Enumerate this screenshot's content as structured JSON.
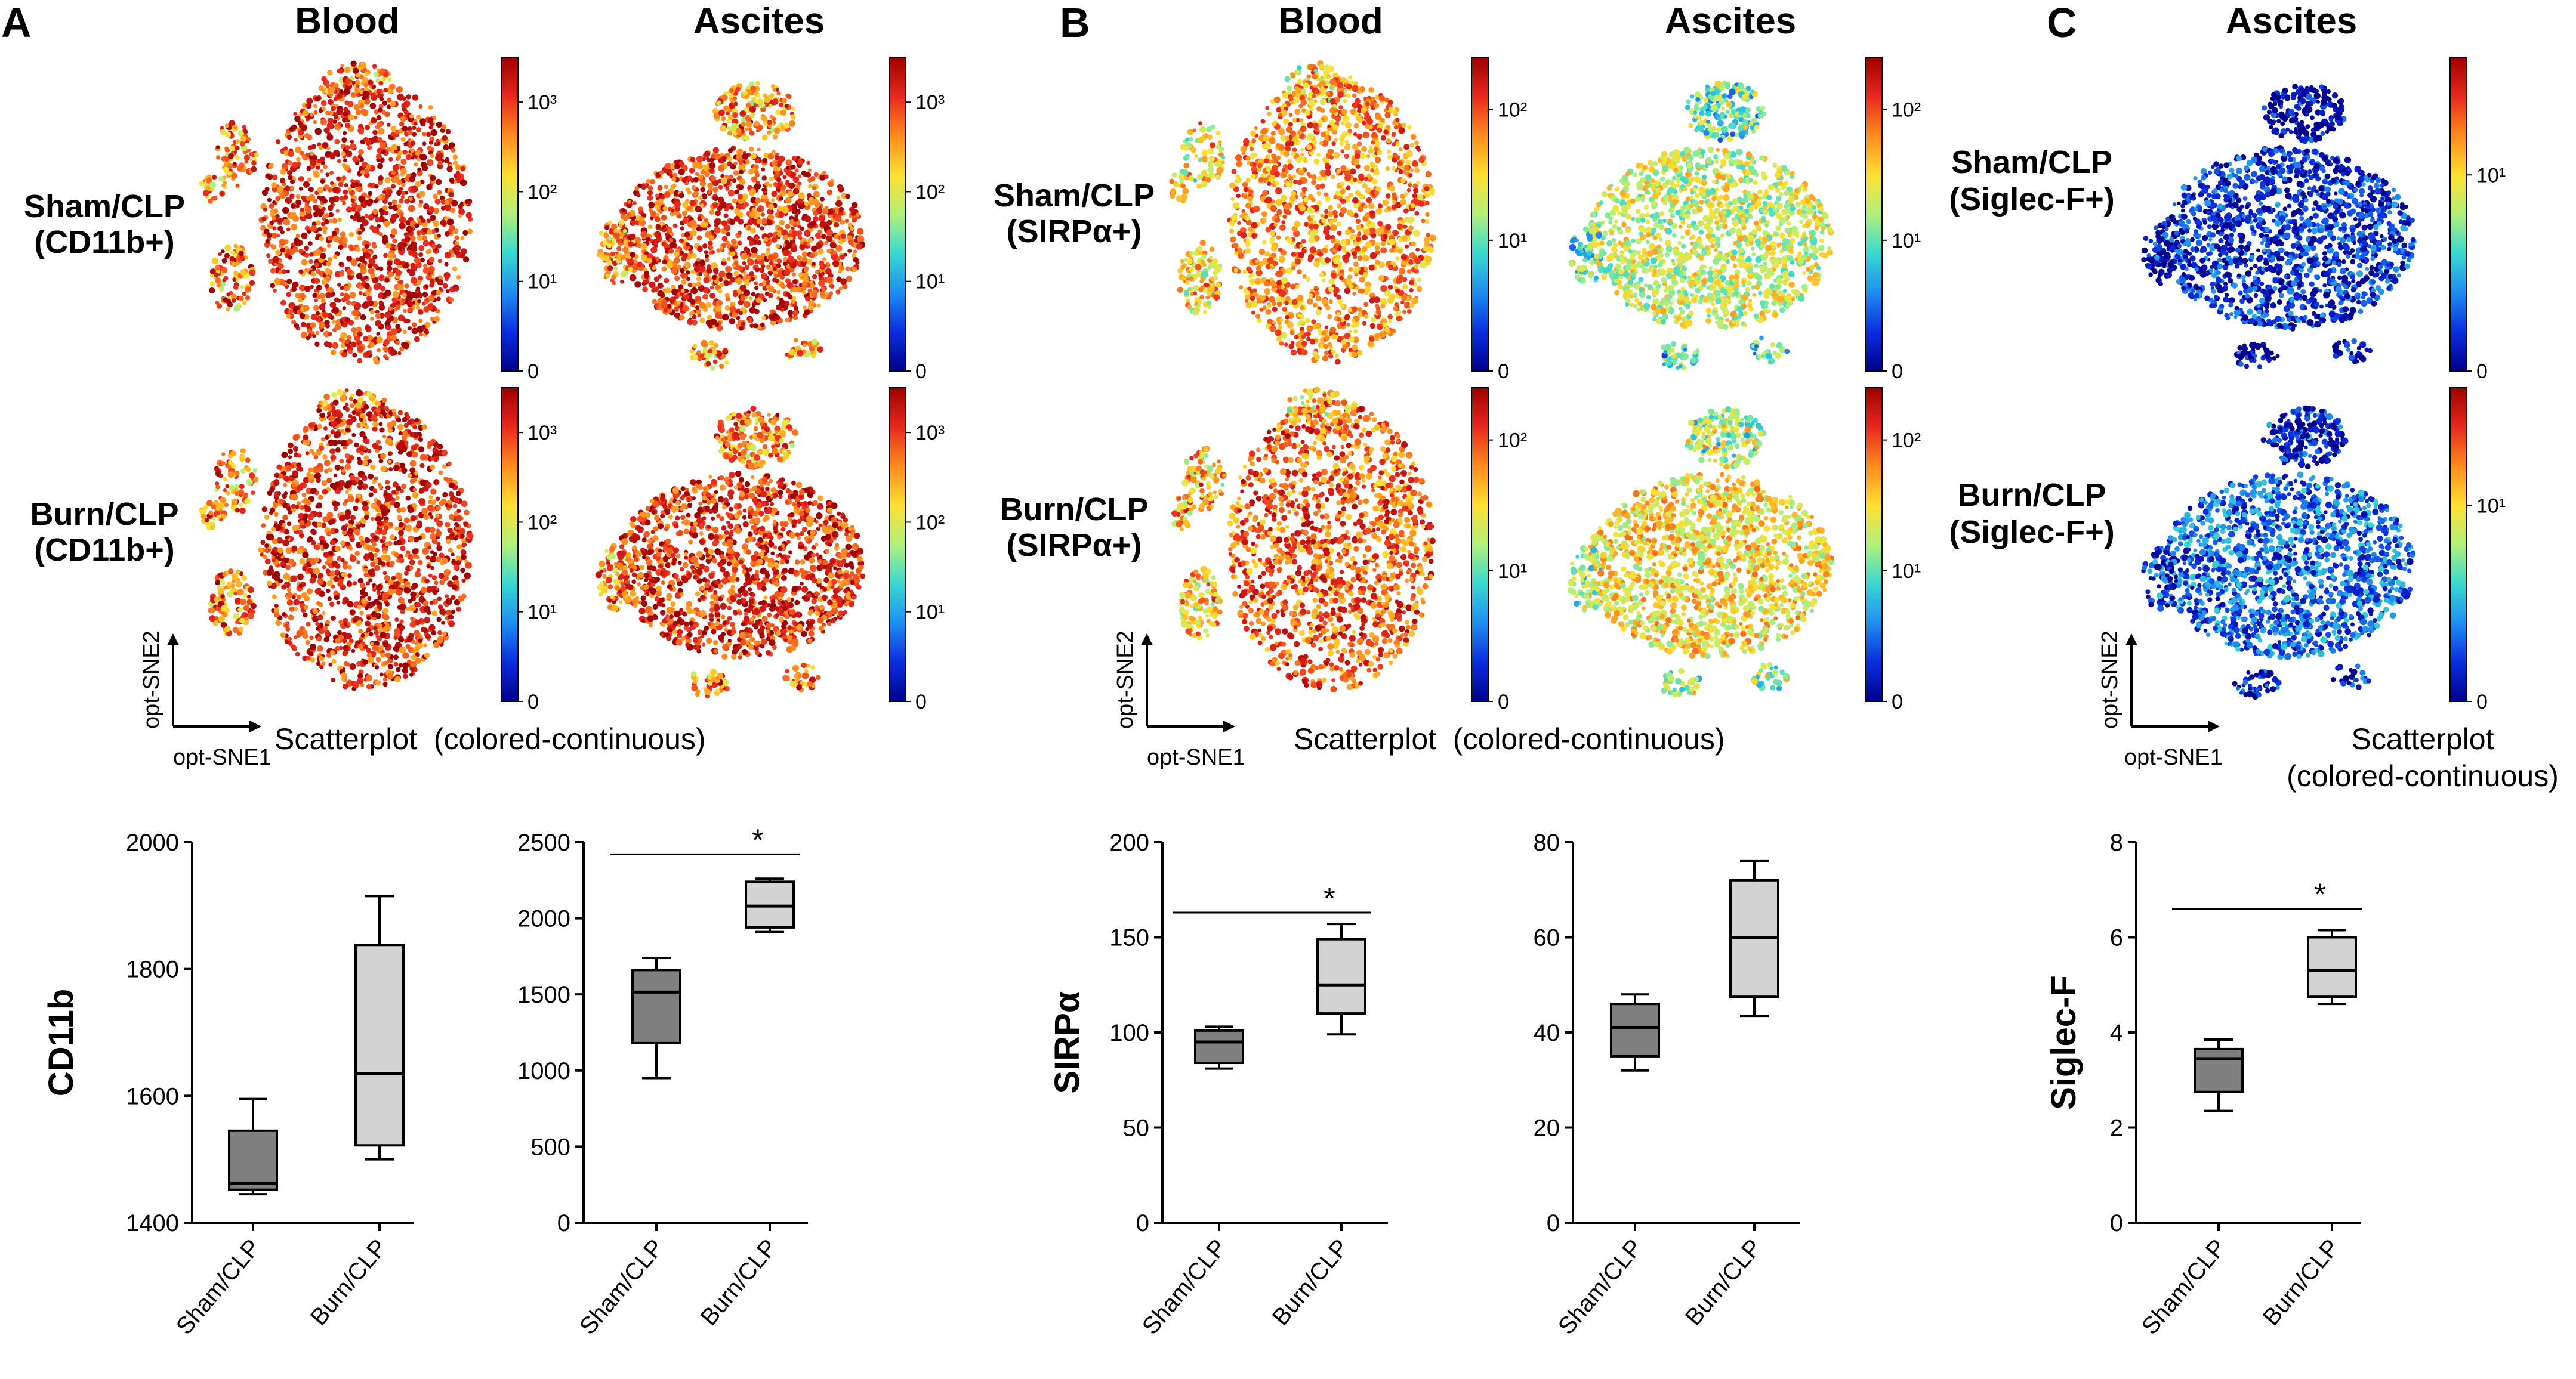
{
  "figure": {
    "tsne_colormap": [
      "#00008c",
      "#0a2de0",
      "#1f8ef0",
      "#38d9d0",
      "#b2f07a",
      "#ffe030",
      "#ff8c1e",
      "#e8281e",
      "#9e0000"
    ],
    "tsne_panels": [
      {
        "id": "A-blood-sham",
        "column": "A-blood",
        "row": 1,
        "cluster": "A",
        "cbar_ticks": [
          {
            "v": 0,
            "t": "0"
          },
          {
            "v": 1,
            "t": "10¹"
          },
          {
            "v": 2,
            "t": "10²"
          },
          {
            "v": 3,
            "t": "10³"
          }
        ],
        "cbar_max": 3.5,
        "intensity": 0.88
      },
      {
        "id": "A-ascites-sham",
        "column": "A-ascites",
        "row": 1,
        "cluster": "B",
        "cbar_ticks": [
          {
            "v": 0,
            "t": "0"
          },
          {
            "v": 1,
            "t": "10¹"
          },
          {
            "v": 2,
            "t": "10²"
          },
          {
            "v": 3,
            "t": "10³"
          }
        ],
        "cbar_max": 3.5,
        "intensity": 0.85
      },
      {
        "id": "A-blood-burn",
        "column": "A-blood",
        "row": 2,
        "cluster": "A",
        "cbar_ticks": [
          {
            "v": 0,
            "t": "0"
          },
          {
            "v": 1,
            "t": "10¹"
          },
          {
            "v": 2,
            "t": "10²"
          },
          {
            "v": 3,
            "t": "10³"
          }
        ],
        "cbar_max": 3.5,
        "intensity": 0.88
      },
      {
        "id": "A-ascites-burn",
        "column": "A-ascites",
        "row": 2,
        "cluster": "B",
        "cbar_ticks": [
          {
            "v": 0,
            "t": "0"
          },
          {
            "v": 1,
            "t": "10¹"
          },
          {
            "v": 2,
            "t": "10²"
          },
          {
            "v": 3,
            "t": "10³"
          }
        ],
        "cbar_max": 3.5,
        "intensity": 0.88
      },
      {
        "id": "B-blood-sham",
        "column": "B-blood",
        "row": 1,
        "cluster": "A",
        "cbar_ticks": [
          {
            "v": 0,
            "t": "0"
          },
          {
            "v": 1,
            "t": "10¹"
          },
          {
            "v": 2,
            "t": "10²"
          }
        ],
        "cbar_max": 2.4,
        "intensity": 0.75
      },
      {
        "id": "B-ascites-sham",
        "column": "B-ascites",
        "row": 1,
        "cluster": "B",
        "cbar_ticks": [
          {
            "v": 0,
            "t": "0"
          },
          {
            "v": 1,
            "t": "10¹"
          },
          {
            "v": 2,
            "t": "10²"
          }
        ],
        "cbar_max": 2.4,
        "intensity": 0.55
      },
      {
        "id": "B-blood-burn",
        "column": "B-blood",
        "row": 2,
        "cluster": "A",
        "cbar_ticks": [
          {
            "v": 0,
            "t": "0"
          },
          {
            "v": 1,
            "t": "10¹"
          },
          {
            "v": 2,
            "t": "10²"
          }
        ],
        "cbar_max": 2.4,
        "intensity": 0.8
      },
      {
        "id": "B-ascites-burn",
        "column": "B-ascites",
        "row": 2,
        "cluster": "B",
        "cbar_ticks": [
          {
            "v": 0,
            "t": "0"
          },
          {
            "v": 1,
            "t": "10¹"
          },
          {
            "v": 2,
            "t": "10²"
          }
        ],
        "cbar_max": 2.4,
        "intensity": 0.62
      },
      {
        "id": "C-ascites-sham",
        "column": "C-ascites",
        "row": 1,
        "cluster": "B",
        "cbar_ticks": [
          {
            "v": 0,
            "t": "0"
          },
          {
            "v": 1,
            "t": "10¹"
          }
        ],
        "cbar_max": 1.6,
        "intensity": 0.12
      },
      {
        "id": "C-ascites-burn",
        "column": "C-ascites",
        "row": 2,
        "cluster": "B",
        "cbar_ticks": [
          {
            "v": 0,
            "t": "0"
          },
          {
            "v": 1,
            "t": "10¹"
          }
        ],
        "cbar_max": 1.6,
        "intensity": 0.2
      }
    ],
    "text": {
      "panel_a": "A",
      "panel_b": "B",
      "panel_c": "C",
      "a_blood": "Blood",
      "a_ascites": "Ascites",
      "b_blood": "Blood",
      "b_ascites": "Ascites",
      "c_ascites": "Ascites",
      "a_row1_l1": "Sham/CLP",
      "a_row1_l2": "(CD11b+)",
      "a_row2_l1": "Burn/CLP",
      "a_row2_l2": "(CD11b+)",
      "b_row1_l1": "Sham/CLP",
      "b_row1_l2": "(SIRPα+)",
      "b_row2_l1": "Burn/CLP",
      "b_row2_l2": "(SIRPα+)",
      "c_row1_l1": "Sham/CLP",
      "c_row1_l2": "(Siglec-F+)",
      "c_row2_l1": "Burn/CLP",
      "c_row2_l2": "(Siglec-F+)",
      "sne2": "opt-SNE2",
      "sne1": "opt-SNE1",
      "a_scatter": "Scatterplot  (colored-continuous)",
      "b_scatter": "Scatterplot  (colored-continuous)",
      "c_scatter_l1": "Scatterplot",
      "c_scatter_l2": "(colored-continuous)",
      "cd11b": "CD11b",
      "sirpa": "SIRPα",
      "siglecf": "Siglec-F"
    }
  },
  "chart_data": [
    {
      "id": "A-blood-box",
      "type": "box",
      "title": "Blood",
      "ylabel": "CD11b",
      "categories": [
        "Sham/CLP",
        "Burn/CLP"
      ],
      "ylim": [
        1400,
        2000
      ],
      "yticks": [
        1400,
        1600,
        1800,
        2000
      ],
      "series": [
        {
          "name": "Sham/CLP",
          "min": 1445,
          "q1": 1452,
          "median": 1462,
          "q3": 1545,
          "max": 1595,
          "color": "#7f7f7f"
        },
        {
          "name": "Burn/CLP",
          "min": 1500,
          "q1": 1522,
          "median": 1635,
          "q3": 1838,
          "max": 1915,
          "color": "#d3d3d3"
        }
      ],
      "significance": null
    },
    {
      "id": "A-ascites-box",
      "type": "box",
      "title": "Ascites",
      "ylabel": "CD11b",
      "categories": [
        "Sham/CLP",
        "Burn/CLP"
      ],
      "ylim": [
        0,
        2500
      ],
      "yticks": [
        0,
        500,
        1000,
        1500,
        2000,
        2500
      ],
      "series": [
        {
          "name": "Sham/CLP",
          "min": 950,
          "q1": 1180,
          "median": 1515,
          "q3": 1660,
          "max": 1740,
          "color": "#7f7f7f"
        },
        {
          "name": "Burn/CLP",
          "min": 1910,
          "q1": 1940,
          "median": 2080,
          "q3": 2240,
          "max": 2260,
          "color": "#d3d3d3"
        }
      ],
      "significance": {
        "label": "*",
        "y": 2420
      }
    },
    {
      "id": "B-blood-box",
      "type": "box",
      "title": "Blood",
      "ylabel": "SIRPα",
      "categories": [
        "Sham/CLP",
        "Burn/CLP"
      ],
      "ylim": [
        0,
        200
      ],
      "yticks": [
        0,
        50,
        100,
        150,
        200
      ],
      "series": [
        {
          "name": "Sham/CLP",
          "min": 81,
          "q1": 84,
          "median": 95,
          "q3": 101,
          "max": 103,
          "color": "#7f7f7f"
        },
        {
          "name": "Burn/CLP",
          "min": 99,
          "q1": 110,
          "median": 125,
          "q3": 149,
          "max": 157,
          "color": "#d3d3d3"
        }
      ],
      "significance": {
        "label": "*",
        "y": 163
      }
    },
    {
      "id": "B-ascites-box",
      "type": "box",
      "title": "Ascites",
      "ylabel": "SIRPα",
      "categories": [
        "Sham/CLP",
        "Burn/CLP"
      ],
      "ylim": [
        0,
        80
      ],
      "yticks": [
        0,
        20,
        40,
        60,
        80
      ],
      "series": [
        {
          "name": "Sham/CLP",
          "min": 32,
          "q1": 35,
          "median": 41,
          "q3": 46,
          "max": 48,
          "color": "#7f7f7f"
        },
        {
          "name": "Burn/CLP",
          "min": 43.5,
          "q1": 47.5,
          "median": 60,
          "q3": 72,
          "max": 76,
          "color": "#d3d3d3"
        }
      ],
      "significance": null
    },
    {
      "id": "C-ascites-box",
      "type": "box",
      "title": "Ascites",
      "ylabel": "Siglec-F",
      "categories": [
        "Sham/CLP",
        "Burn/CLP"
      ],
      "ylim": [
        0,
        8
      ],
      "yticks": [
        0,
        2,
        4,
        6,
        8
      ],
      "series": [
        {
          "name": "Sham/CLP",
          "min": 2.35,
          "q1": 2.75,
          "median": 3.45,
          "q3": 3.65,
          "max": 3.85,
          "color": "#7f7f7f"
        },
        {
          "name": "Burn/CLP",
          "min": 4.6,
          "q1": 4.75,
          "median": 5.3,
          "q3": 6.0,
          "max": 6.15,
          "color": "#d3d3d3"
        }
      ],
      "significance": {
        "label": "*",
        "y": 6.6
      }
    }
  ]
}
